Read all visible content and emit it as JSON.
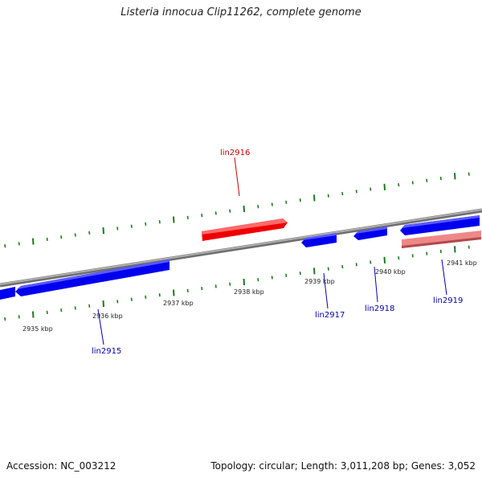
{
  "title": "Listeria innocua Clip11262, complete genome",
  "footer": {
    "accession": "Accession: NC_003212",
    "stats": "Topology: circular; Length: 3,011,208 bp; Genes: 3,052"
  },
  "scale_labels": [
    "2935 kbp",
    "2936 kbp",
    "2937 kbp",
    "2938 kbp",
    "2939 kbp",
    "2940 kbp",
    "2941 kbp"
  ],
  "genes": [
    {
      "name": "lin2915",
      "strand": "reverse",
      "color": "#0000ee"
    },
    {
      "name": "lin2916",
      "strand": "forward",
      "color": "#ee0000"
    },
    {
      "name": "lin2917",
      "strand": "reverse",
      "color": "#0000ee"
    },
    {
      "name": "lin2918",
      "strand": "reverse",
      "color": "#0000ee"
    },
    {
      "name": "lin2919",
      "strand": "reverse",
      "color": "#0000ee"
    }
  ],
  "colors": {
    "backbone": "#8a8a8a",
    "tick": "#1a7a1a",
    "forward_gene": "#ee0000",
    "reverse_gene": "#0000ee",
    "highlight_gene": "#ee8888",
    "forward_label": "#cc0000",
    "reverse_label": "#0000aa"
  }
}
